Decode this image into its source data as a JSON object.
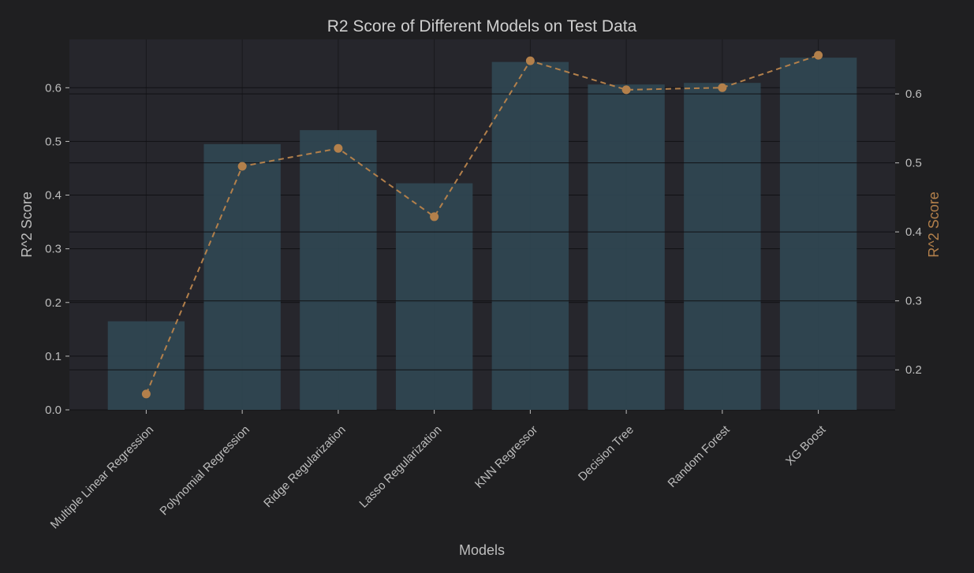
{
  "chart_data": {
    "type": "bar",
    "title": "R2 Score of Different Models on Test Data",
    "xlabel": "Models",
    "ylabel": "R^2 Score",
    "y2label": "R^2 Score",
    "categories": [
      "Multiple Linear Regression",
      "Polynomial Regression",
      "Ridge Regularization",
      "Lasso Regularization",
      "KNN Regressor",
      "Decision Tree",
      "Random Forest",
      "XG Boost"
    ],
    "series": [
      {
        "kind": "bar",
        "axis": "left",
        "values": [
          0.165,
          0.495,
          0.521,
          0.422,
          0.648,
          0.606,
          0.609,
          0.656
        ]
      },
      {
        "kind": "line",
        "axis": "right",
        "style": "dashed-with-markers",
        "values": [
          0.165,
          0.495,
          0.521,
          0.422,
          0.648,
          0.606,
          0.609,
          0.656
        ]
      }
    ],
    "ylim": [
      0,
      0.69
    ],
    "yticks": [
      0.0,
      0.1,
      0.2,
      0.3,
      0.4,
      0.5,
      0.6
    ],
    "ytick_labels": [
      "0.0",
      "0.1",
      "0.2",
      "0.3",
      "0.4",
      "0.5",
      "0.6"
    ],
    "y2lim": [
      0.142,
      0.679
    ],
    "y2ticks": [
      0.2,
      0.3,
      0.4,
      0.5,
      0.6
    ],
    "y2tick_labels": [
      "0.2",
      "0.3",
      "0.4",
      "0.5",
      "0.6"
    ],
    "grid": true,
    "colors": {
      "background": "#1f1f21",
      "plot_background": "#26262c",
      "bar": "#2f4651",
      "line": "#b3804b",
      "text": "#bdbdbd",
      "right_axis_text": "#b3804b",
      "grid": "#111114"
    }
  }
}
